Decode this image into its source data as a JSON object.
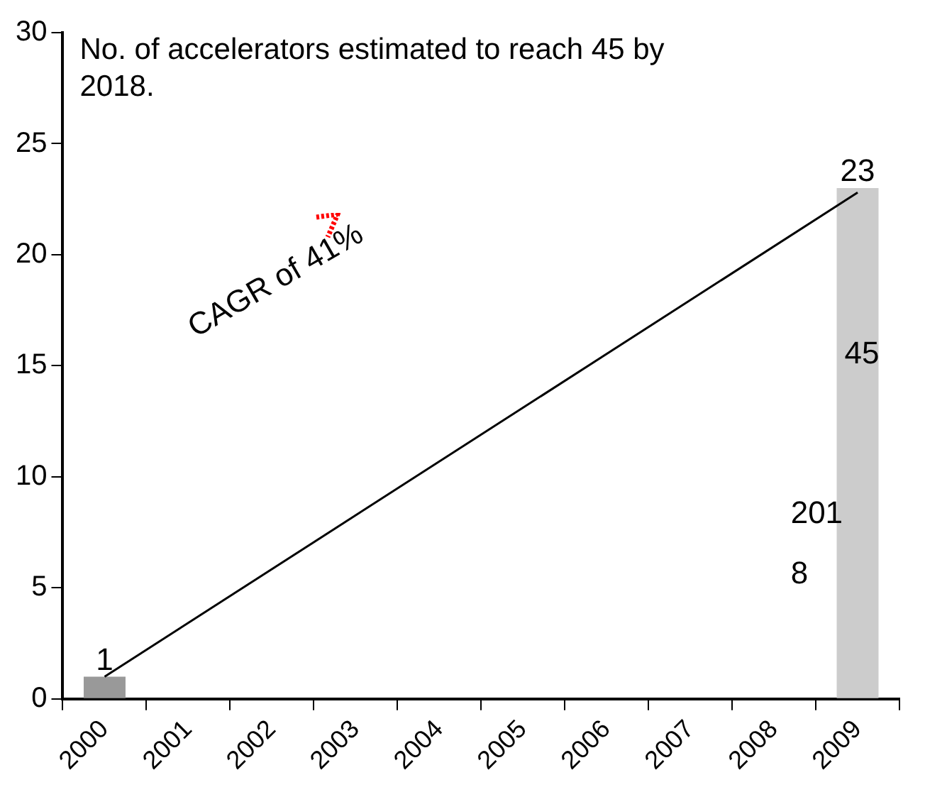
{
  "chart_data": {
    "type": "bar",
    "title": "No. of accelerators estimated to reach 45 by 2018.",
    "categories": [
      "2000",
      "2001",
      "2002",
      "2003",
      "2004",
      "2005",
      "2006",
      "2007",
      "2008",
      "2009"
    ],
    "series": [
      {
        "colors": [
          "#999999",
          null,
          null,
          null,
          null,
          null,
          null,
          null,
          null,
          "#cccccc"
        ],
        "values": [
          1,
          null,
          null,
          null,
          null,
          null,
          null,
          null,
          null,
          23
        ],
        "value_labels": [
          "1",
          null,
          null,
          null,
          null,
          null,
          null,
          null,
          null,
          "23"
        ]
      },
      {
        "type": "line",
        "color": "#000000",
        "values": [
          1,
          null,
          null,
          null,
          null,
          null,
          null,
          null,
          null,
          22.8
        ]
      }
    ],
    "ylim": [
      0,
      30
    ],
    "yticks": [
      0,
      5,
      10,
      15,
      20,
      25,
      30
    ],
    "grid": false,
    "legend": false,
    "annotations": [
      "CAGR of 41%",
      "45",
      "2018"
    ]
  }
}
